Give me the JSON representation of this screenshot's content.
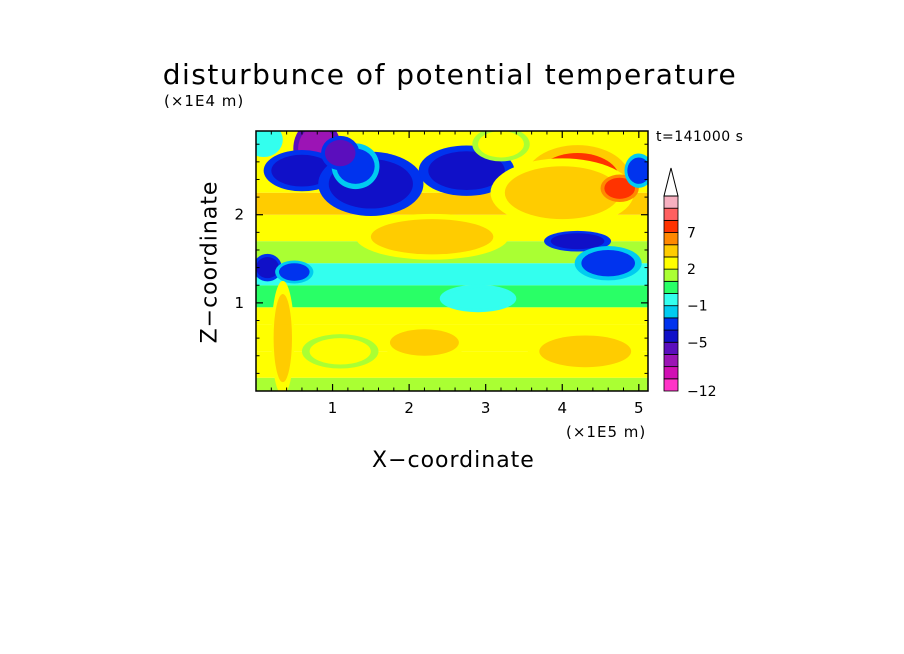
{
  "chart_data": {
    "type": "heatmap",
    "title": "disturbunce of potential temperature",
    "xlabel": "X−coordinate",
    "ylabel": "Z−coordinate",
    "x_unit": "(×1E5 m)",
    "z_unit": "(×1E4 m)",
    "time_label": "t=141000 s",
    "xlim": [
      0,
      5.12
    ],
    "ylim": [
      0,
      2.95
    ],
    "x_ticks": [
      {
        "value": 1,
        "label": "1"
      },
      {
        "value": 2,
        "label": "2"
      },
      {
        "value": 3,
        "label": "3"
      },
      {
        "value": 4,
        "label": "4"
      },
      {
        "value": 5,
        "label": "5"
      }
    ],
    "y_ticks": [
      {
        "value": 1,
        "label": "1"
      },
      {
        "value": 2,
        "label": "2"
      }
    ],
    "colorbar": {
      "levels": [
        "−12",
        "-10",
        "-8",
        "-6",
        "-5",
        "-4",
        "-2",
        "−1",
        "0",
        "1",
        "2",
        "4",
        "6",
        "7",
        "9",
        "11"
      ],
      "colors": [
        "#ff33c7",
        "#d10fb4",
        "#9c14b5",
        "#5b0ebd",
        "#1010c8",
        "#0033ee",
        "#00ccf0",
        "#33ffee",
        "#29ff66",
        "#aaff33",
        "#ffff00",
        "#ffcc00",
        "#ff8800",
        "#ff3300",
        "#ff6060",
        "#f7b0c0"
      ],
      "labels": [
        {
          "level": 0,
          "text": "−12"
        },
        {
          "level": 4,
          "text": "−5"
        },
        {
          "level": 7,
          "text": "−1"
        },
        {
          "level": 10,
          "text": "2"
        },
        {
          "level": 13,
          "text": "7"
        }
      ],
      "extend": "max"
    },
    "field_bands": [
      {
        "z": [
          0.0,
          0.15
        ],
        "value": 1.5
      },
      {
        "z": [
          0.15,
          0.45
        ],
        "value": 2.4
      },
      {
        "z": [
          0.45,
          0.75
        ],
        "value": 3.3
      },
      {
        "z": [
          0.75,
          0.95
        ],
        "value": 2.1
      },
      {
        "z": [
          0.95,
          1.2
        ],
        "value": 0.5
      },
      {
        "z": [
          1.2,
          1.45
        ],
        "value": -0.8
      },
      {
        "z": [
          1.45,
          1.7
        ],
        "value": 1.2
      },
      {
        "z": [
          1.7,
          2.0
        ],
        "value": 3.5
      },
      {
        "z": [
          2.0,
          2.25
        ],
        "value": 5.0
      },
      {
        "z": [
          2.25,
          2.95
        ],
        "value": 2.0
      }
    ],
    "features": [
      {
        "x": 0.8,
        "z": 2.75,
        "rx": 0.25,
        "rz": 0.25,
        "value": -8
      },
      {
        "x": 0.6,
        "z": 2.5,
        "rx": 0.4,
        "rz": 0.18,
        "value": -5
      },
      {
        "x": 1.5,
        "z": 2.35,
        "rx": 0.55,
        "rz": 0.28,
        "value": -5
      },
      {
        "x": 1.3,
        "z": 2.55,
        "rx": 0.25,
        "rz": 0.2,
        "value": -4
      },
      {
        "x": 2.75,
        "z": 2.5,
        "rx": 0.5,
        "rz": 0.22,
        "value": -5
      },
      {
        "x": 1.1,
        "z": 2.7,
        "rx": 0.2,
        "rz": 0.15,
        "value": -6
      },
      {
        "x": 4.2,
        "z": 2.4,
        "rx": 0.55,
        "rz": 0.3,
        "value": 7
      },
      {
        "x": 4.25,
        "z": 2.45,
        "rx": 0.3,
        "rz": 0.15,
        "value": 9
      },
      {
        "x": 4.0,
        "z": 2.25,
        "rx": 0.75,
        "rz": 0.3,
        "value": 4
      },
      {
        "x": 2.3,
        "z": 1.75,
        "rx": 0.8,
        "rz": 0.2,
        "value": 4
      },
      {
        "x": 4.2,
        "z": 1.7,
        "rx": 0.35,
        "rz": 0.09,
        "value": -5
      },
      {
        "x": 4.6,
        "z": 1.45,
        "rx": 0.35,
        "rz": 0.15,
        "value": -4
      },
      {
        "x": 0.15,
        "z": 1.4,
        "rx": 0.15,
        "rz": 0.12,
        "value": -5
      },
      {
        "x": 0.5,
        "z": 1.35,
        "rx": 0.2,
        "rz": 0.1,
        "value": -4
      },
      {
        "x": 2.9,
        "z": 1.05,
        "rx": 0.4,
        "rz": 0.12,
        "value": -0.5
      },
      {
        "x": 1.1,
        "z": 0.45,
        "rx": 0.4,
        "rz": 0.15,
        "value": 3.5
      },
      {
        "x": 4.3,
        "z": 0.45,
        "rx": 0.6,
        "rz": 0.18,
        "value": 4.5
      },
      {
        "x": 2.2,
        "z": 0.55,
        "rx": 0.45,
        "rz": 0.15,
        "value": 4
      },
      {
        "x": 0.35,
        "z": 0.6,
        "rx": 0.12,
        "rz": 0.5,
        "value": 4
      },
      {
        "x": 0.1,
        "z": 2.85,
        "rx": 0.2,
        "rz": 0.15,
        "value": -1
      },
      {
        "x": 3.2,
        "z": 2.8,
        "rx": 0.3,
        "rz": 0.15,
        "value": 3
      },
      {
        "x": 4.75,
        "z": 2.3,
        "rx": 0.2,
        "rz": 0.12,
        "value": 8
      },
      {
        "x": 5.0,
        "z": 2.5,
        "rx": 0.15,
        "rz": 0.15,
        "value": -4
      }
    ]
  }
}
